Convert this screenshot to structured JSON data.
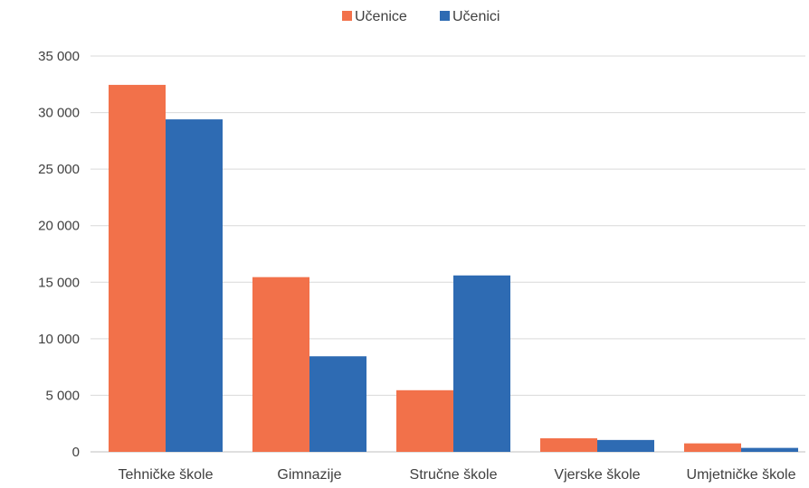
{
  "chart_data": {
    "type": "bar",
    "categories": [
      "Tehničke škole",
      "Gimnazije",
      "Stručne škole",
      "Vjerske škole",
      "Umjetničke škole"
    ],
    "series": [
      {
        "name": "Učenice",
        "color": "#F2714A",
        "values": [
          32450,
          15450,
          5450,
          1200,
          750
        ]
      },
      {
        "name": "Učenici",
        "color": "#2E6BB3",
        "values": [
          29400,
          8450,
          15600,
          1050,
          350
        ]
      }
    ],
    "y_ticks": [
      "0",
      "5 000",
      "10 000",
      "15 000",
      "20 000",
      "25 000",
      "30 000",
      "35 000"
    ],
    "ylim": [
      0,
      35000
    ],
    "grid": true,
    "legend_position": "top-center"
  }
}
